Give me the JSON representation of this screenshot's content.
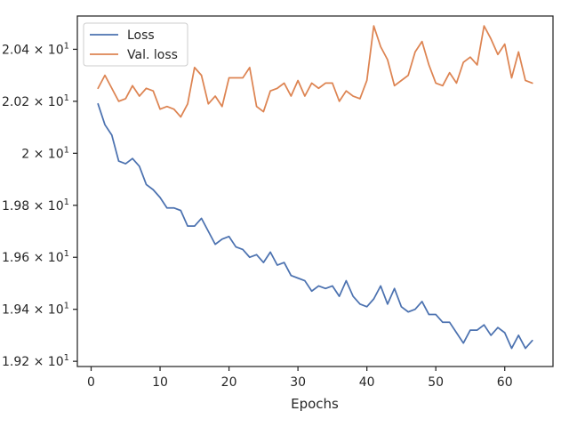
{
  "chart_data": {
    "type": "line",
    "title": "",
    "xlabel": "Epochs",
    "ylabel": "",
    "xlim": [
      -2,
      67
    ],
    "ylim": [
      19.18,
      20.528
    ],
    "xticks": [
      0,
      10,
      20,
      30,
      40,
      50,
      60
    ],
    "xtick_labels": [
      "0",
      "10",
      "20",
      "30",
      "40",
      "50",
      "60"
    ],
    "yticks": [
      19.2,
      19.4,
      19.6,
      19.8,
      20.0,
      20.2,
      20.4
    ],
    "ytick_labels": [
      {
        "mant": "1.92",
        "exp": "1"
      },
      {
        "mant": "1.94",
        "exp": "1"
      },
      {
        "mant": "1.96",
        "exp": "1"
      },
      {
        "mant": "1.98",
        "exp": "1"
      },
      {
        "mant": "2",
        "exp": "1"
      },
      {
        "mant": "2.02",
        "exp": "1"
      },
      {
        "mant": "2.04",
        "exp": "1"
      }
    ],
    "grid": false,
    "legend_position": "top-left",
    "x": [
      1,
      2,
      3,
      4,
      5,
      6,
      7,
      8,
      9,
      10,
      11,
      12,
      13,
      14,
      15,
      16,
      17,
      18,
      19,
      20,
      21,
      22,
      23,
      24,
      25,
      26,
      27,
      28,
      29,
      30,
      31,
      32,
      33,
      34,
      35,
      36,
      37,
      38,
      39,
      40,
      41,
      42,
      43,
      44,
      45,
      46,
      47,
      48,
      49,
      50,
      51,
      52,
      53,
      54,
      55,
      56,
      57,
      58,
      59,
      60,
      61,
      62,
      63,
      64
    ],
    "series": [
      {
        "name": "Loss",
        "color": "#4c72b0",
        "values": [
          20.19,
          20.11,
          20.07,
          19.97,
          19.96,
          19.98,
          19.95,
          19.88,
          19.86,
          19.83,
          19.79,
          19.79,
          19.78,
          19.72,
          19.72,
          19.75,
          19.7,
          19.65,
          19.67,
          19.68,
          19.64,
          19.63,
          19.6,
          19.61,
          19.58,
          19.62,
          19.57,
          19.58,
          19.53,
          19.52,
          19.51,
          19.47,
          19.49,
          19.48,
          19.49,
          19.45,
          19.51,
          19.45,
          19.42,
          19.41,
          19.44,
          19.49,
          19.42,
          19.48,
          19.41,
          19.39,
          19.4,
          19.43,
          19.38,
          19.38,
          19.35,
          19.35,
          19.31,
          19.27,
          19.32,
          19.32,
          19.34,
          19.3,
          19.33,
          19.31,
          19.25,
          19.3,
          19.25,
          19.28
        ]
      },
      {
        "name": "Val. loss",
        "color": "#dd8452",
        "values": [
          20.25,
          20.3,
          20.25,
          20.2,
          20.21,
          20.26,
          20.22,
          20.25,
          20.24,
          20.17,
          20.18,
          20.17,
          20.14,
          20.19,
          20.33,
          20.3,
          20.19,
          20.22,
          20.18,
          20.29,
          20.29,
          20.29,
          20.33,
          20.18,
          20.16,
          20.24,
          20.25,
          20.27,
          20.22,
          20.28,
          20.22,
          20.27,
          20.25,
          20.27,
          20.27,
          20.2,
          20.24,
          20.22,
          20.21,
          20.28,
          20.49,
          20.41,
          20.36,
          20.26,
          20.28,
          20.3,
          20.39,
          20.43,
          20.34,
          20.27,
          20.26,
          20.31,
          20.27,
          20.35,
          20.37,
          20.34,
          20.49,
          20.44,
          20.38,
          20.42,
          20.29,
          20.39,
          20.28,
          20.27
        ]
      }
    ]
  }
}
